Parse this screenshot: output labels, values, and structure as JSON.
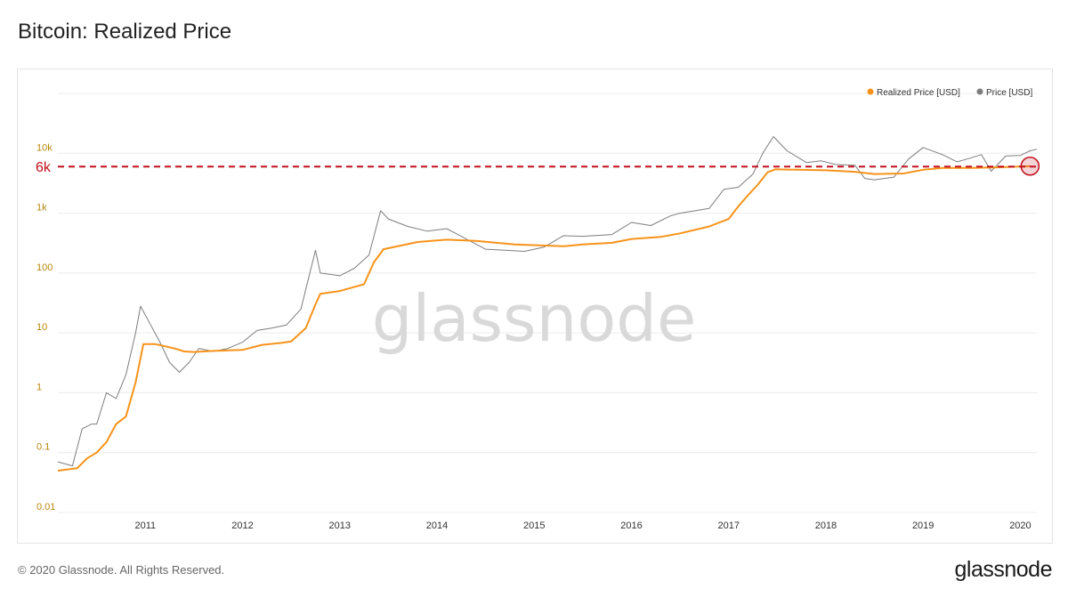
{
  "title": "Bitcoin: Realized Price",
  "footer": "© 2020 Glassnode. All Rights Reserved.",
  "brand": "glassnode",
  "watermark": "glassnode",
  "chart_data": {
    "type": "line",
    "title": "Bitcoin: Realized Price",
    "y_scale": "log",
    "ylim": [
      0.01,
      100000
    ],
    "y_ticks": [
      {
        "value": 0.01,
        "label": "0.01"
      },
      {
        "value": 0.1,
        "label": "0.1"
      },
      {
        "value": 1,
        "label": "1"
      },
      {
        "value": 10,
        "label": "10"
      },
      {
        "value": 100,
        "label": "100"
      },
      {
        "value": 1000,
        "label": "1k"
      },
      {
        "value": 10000,
        "label": "10k"
      }
    ],
    "xlim": [
      2010.6,
      2020.67
    ],
    "x_ticks": [
      "2011",
      "2012",
      "2013",
      "2014",
      "2015",
      "2016",
      "2017",
      "2018",
      "2019",
      "2020"
    ],
    "grid": true,
    "legend_position": "top-right",
    "series": [
      {
        "name": "Realized Price [USD]",
        "color": "#f7931a",
        "points": [
          [
            2010.6,
            0.05
          ],
          [
            2010.8,
            0.055
          ],
          [
            2010.9,
            0.08
          ],
          [
            2011.0,
            0.1
          ],
          [
            2011.1,
            0.15
          ],
          [
            2011.2,
            0.3
          ],
          [
            2011.3,
            0.4
          ],
          [
            2011.4,
            1.5
          ],
          [
            2011.48,
            6.5
          ],
          [
            2011.6,
            6.5
          ],
          [
            2011.8,
            5.5
          ],
          [
            2011.9,
            4.9
          ],
          [
            2012.0,
            4.8
          ],
          [
            2012.2,
            5.0
          ],
          [
            2012.5,
            5.2
          ],
          [
            2012.7,
            6.3
          ],
          [
            2012.9,
            6.8
          ],
          [
            2013.0,
            7.2
          ],
          [
            2013.15,
            12
          ],
          [
            2013.25,
            30
          ],
          [
            2013.3,
            45
          ],
          [
            2013.5,
            50
          ],
          [
            2013.75,
            65
          ],
          [
            2013.85,
            150
          ],
          [
            2013.95,
            250
          ],
          [
            2014.3,
            330
          ],
          [
            2014.6,
            360
          ],
          [
            2014.9,
            345
          ],
          [
            2015.3,
            300
          ],
          [
            2015.8,
            280
          ],
          [
            2016.0,
            300
          ],
          [
            2016.3,
            320
          ],
          [
            2016.5,
            370
          ],
          [
            2016.8,
            400
          ],
          [
            2017.0,
            460
          ],
          [
            2017.3,
            600
          ],
          [
            2017.5,
            800
          ],
          [
            2017.6,
            1300
          ],
          [
            2017.7,
            2000
          ],
          [
            2017.8,
            3000
          ],
          [
            2017.9,
            4800
          ],
          [
            2017.98,
            5400
          ],
          [
            2018.2,
            5300
          ],
          [
            2018.5,
            5200
          ],
          [
            2018.8,
            4900
          ],
          [
            2019.0,
            4500
          ],
          [
            2019.3,
            4600
          ],
          [
            2019.5,
            5300
          ],
          [
            2019.7,
            5700
          ],
          [
            2020.0,
            5700
          ],
          [
            2020.3,
            5850
          ],
          [
            2020.6,
            6100
          ]
        ]
      },
      {
        "name": "Price [USD]",
        "color": "#7d7d7d",
        "points": [
          [
            2010.6,
            0.07
          ],
          [
            2010.75,
            0.06
          ],
          [
            2010.85,
            0.25
          ],
          [
            2010.95,
            0.3
          ],
          [
            2011.0,
            0.3
          ],
          [
            2011.1,
            1.0
          ],
          [
            2011.2,
            0.8
          ],
          [
            2011.3,
            2.0
          ],
          [
            2011.4,
            10
          ],
          [
            2011.45,
            28
          ],
          [
            2011.55,
            14
          ],
          [
            2011.65,
            7
          ],
          [
            2011.75,
            3.2
          ],
          [
            2011.85,
            2.2
          ],
          [
            2011.95,
            3.2
          ],
          [
            2012.05,
            5.5
          ],
          [
            2012.2,
            4.9
          ],
          [
            2012.35,
            5.5
          ],
          [
            2012.5,
            7
          ],
          [
            2012.65,
            11
          ],
          [
            2012.8,
            12
          ],
          [
            2012.95,
            13.5
          ],
          [
            2013.1,
            25
          ],
          [
            2013.25,
            240
          ],
          [
            2013.3,
            100
          ],
          [
            2013.5,
            90
          ],
          [
            2013.65,
            120
          ],
          [
            2013.8,
            200
          ],
          [
            2013.92,
            1100
          ],
          [
            2014.0,
            800
          ],
          [
            2014.2,
            600
          ],
          [
            2014.4,
            500
          ],
          [
            2014.6,
            550
          ],
          [
            2014.8,
            370
          ],
          [
            2015.0,
            250
          ],
          [
            2015.2,
            240
          ],
          [
            2015.4,
            230
          ],
          [
            2015.6,
            270
          ],
          [
            2015.8,
            420
          ],
          [
            2016.0,
            410
          ],
          [
            2016.3,
            440
          ],
          [
            2016.5,
            700
          ],
          [
            2016.7,
            620
          ],
          [
            2016.9,
            900
          ],
          [
            2017.0,
            1000
          ],
          [
            2017.3,
            1200
          ],
          [
            2017.45,
            2500
          ],
          [
            2017.6,
            2700
          ],
          [
            2017.75,
            4500
          ],
          [
            2017.85,
            10000
          ],
          [
            2017.96,
            19000
          ],
          [
            2018.1,
            11000
          ],
          [
            2018.3,
            7000
          ],
          [
            2018.45,
            7500
          ],
          [
            2018.6,
            6500
          ],
          [
            2018.8,
            6300
          ],
          [
            2018.9,
            3800
          ],
          [
            2019.0,
            3600
          ],
          [
            2019.2,
            4000
          ],
          [
            2019.35,
            8000
          ],
          [
            2019.5,
            12500
          ],
          [
            2019.7,
            9500
          ],
          [
            2019.85,
            7200
          ],
          [
            2019.95,
            8000
          ],
          [
            2020.1,
            9500
          ],
          [
            2020.2,
            5000
          ],
          [
            2020.35,
            9000
          ],
          [
            2020.5,
            9200
          ],
          [
            2020.6,
            11000
          ],
          [
            2020.67,
            11700
          ]
        ]
      }
    ],
    "annotation": {
      "label": "6k",
      "value": 6000,
      "color": "#c0101b"
    }
  }
}
